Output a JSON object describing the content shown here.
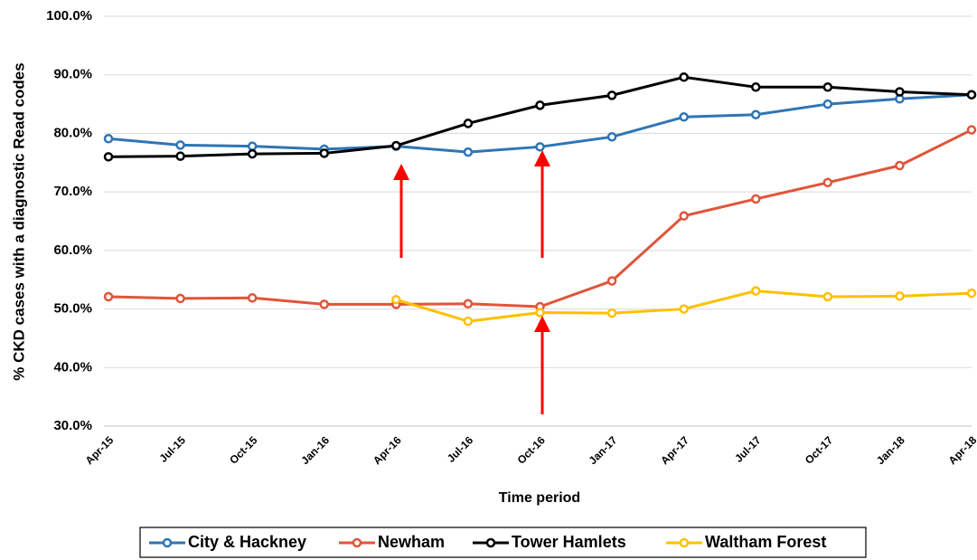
{
  "chart_data": {
    "type": "line",
    "x_label": "Time period",
    "y_label": "% CKD cases with a diagnostic Read codes",
    "categories": [
      "Apr-15",
      "Jul-15",
      "Oct-15",
      "Jan-16",
      "Apr-16",
      "Jul-16",
      "Oct-16",
      "Jan-17",
      "Apr-17",
      "Jul-17",
      "Oct-17",
      "Jan-18",
      "Apr-18"
    ],
    "series": [
      {
        "name": "City & Hackney",
        "color": "#2e75b6",
        "values": [
          79.1,
          78.0,
          77.8,
          77.3,
          77.8,
          76.8,
          77.7,
          79.4,
          82.8,
          83.2,
          85.0,
          85.9,
          86.6
        ]
      },
      {
        "name": "Newham",
        "color": "#e0553a",
        "values": [
          52.1,
          51.8,
          51.9,
          50.8,
          50.8,
          50.9,
          50.4,
          54.8,
          65.9,
          68.8,
          71.6,
          74.5,
          80.6
        ]
      },
      {
        "name": "Tower Hamlets",
        "color": "#000000",
        "values": [
          76.0,
          76.1,
          76.5,
          76.6,
          77.9,
          81.7,
          84.8,
          86.5,
          89.6,
          87.9,
          87.9,
          87.1,
          86.6
        ]
      },
      {
        "name": "Waltham Forest",
        "color": "#ffc000",
        "values": [
          null,
          null,
          null,
          null,
          51.6,
          47.9,
          49.4,
          49.3,
          50.0,
          53.1,
          52.1,
          52.2,
          52.7
        ]
      }
    ],
    "ylim": [
      30,
      100
    ],
    "yticks": [
      {
        "value": 30,
        "label": "30.0%"
      },
      {
        "value": 40,
        "label": "40.0%"
      },
      {
        "value": 50,
        "label": "50.0%"
      },
      {
        "value": 60,
        "label": "60.0%"
      },
      {
        "value": 70,
        "label": "70.0%"
      },
      {
        "value": 80,
        "label": "80.0%"
      },
      {
        "value": 90,
        "label": "90.0%"
      },
      {
        "value": 100,
        "label": "100.0%"
      }
    ],
    "grid": true,
    "legend": "bottom"
  }
}
